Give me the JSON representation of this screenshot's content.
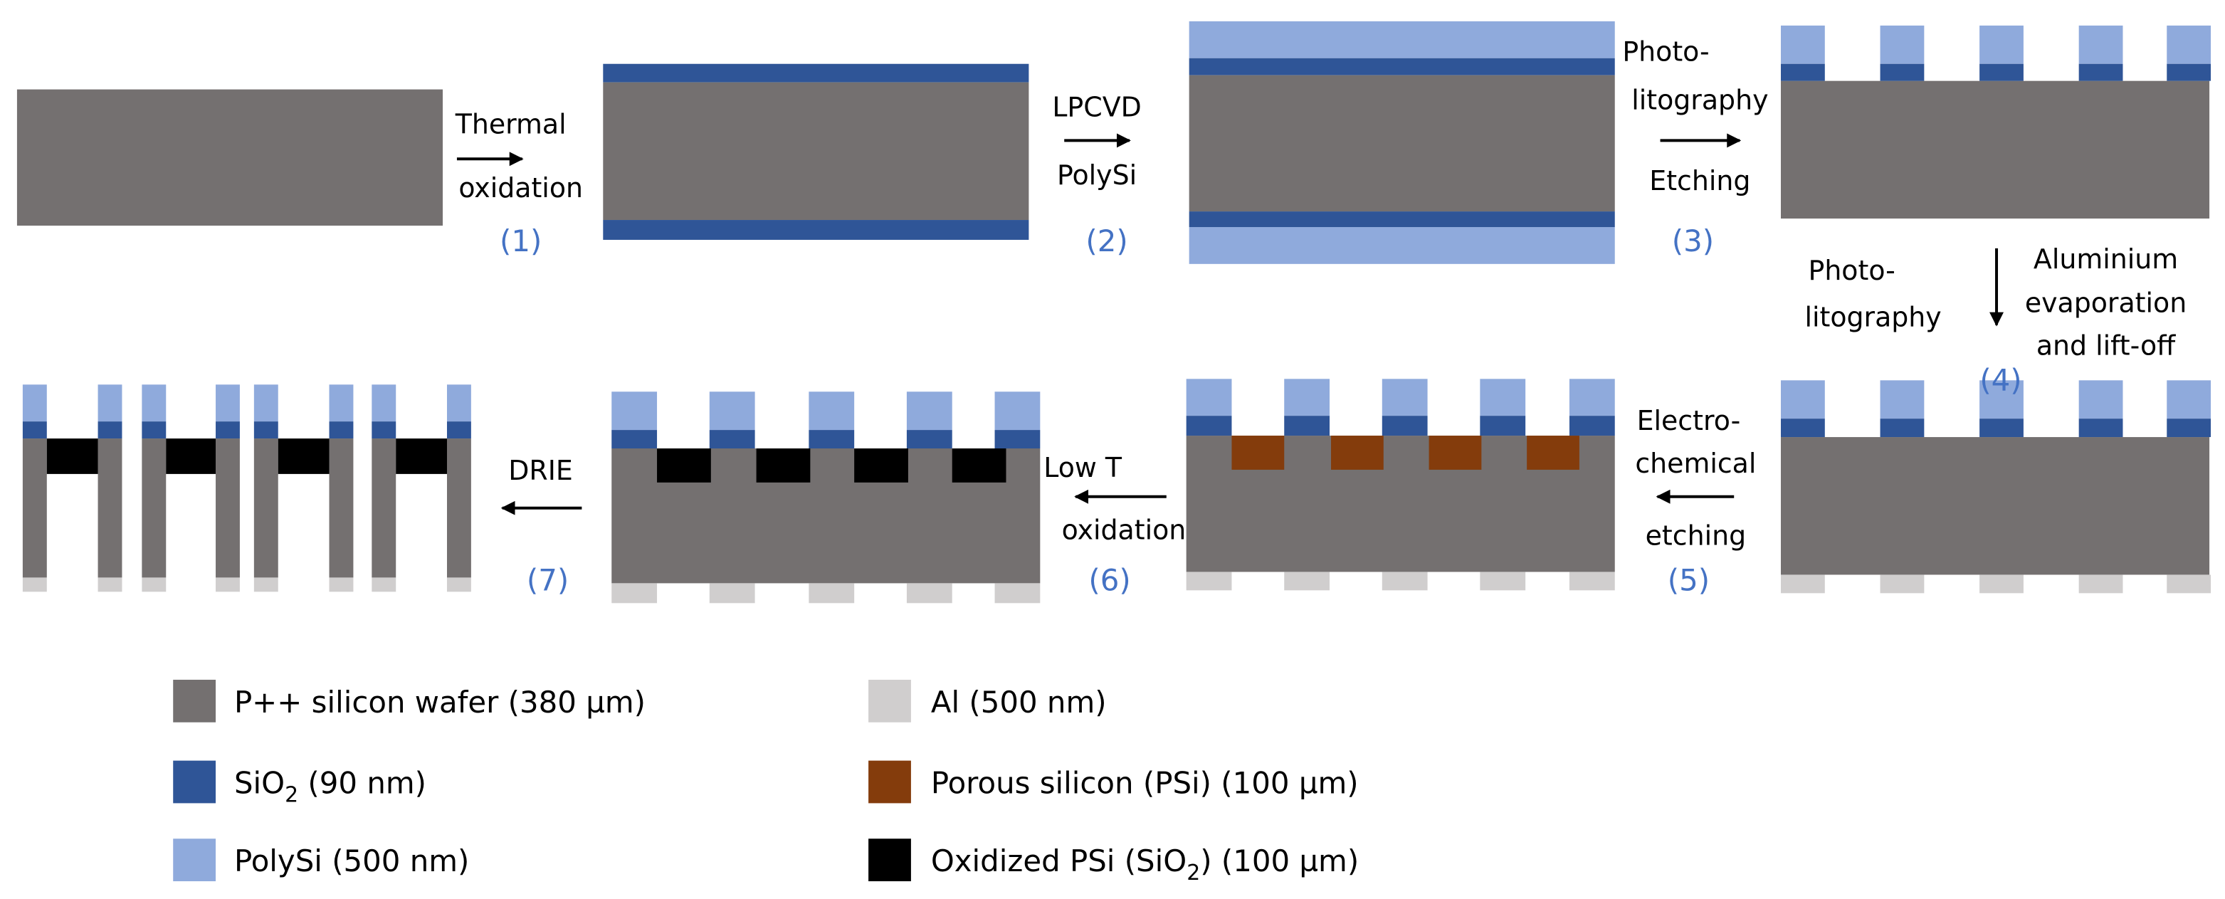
{
  "steps": [
    {
      "number": "(1)",
      "texts": [
        "Thermal",
        "oxidation"
      ]
    },
    {
      "number": "(2)",
      "texts": [
        "LPCVD",
        "PolySi"
      ]
    },
    {
      "number": "(3)",
      "texts": [
        "Photo-",
        "litography",
        "Etching"
      ]
    },
    {
      "number": "(4)",
      "texts": [
        "Photo-",
        "litography",
        "Aluminium",
        "evaporation",
        "and lift-off"
      ]
    },
    {
      "number": "(5)",
      "texts": [
        "Electro-",
        "chemical",
        "etching"
      ]
    },
    {
      "number": "(6)",
      "texts": [
        "Low T",
        "oxidation"
      ]
    },
    {
      "number": "(7)",
      "texts": [
        "DRIE"
      ]
    }
  ],
  "legend": [
    {
      "label": "P++ silicon wafer (380 µm)"
    },
    {
      "label": "SiO",
      "subscript": "2",
      "label_after": " (90 nm)"
    },
    {
      "label": "PolySi (500 nm)"
    },
    {
      "label": "Al (500 nm)"
    },
    {
      "label": "Porous silicon (PSi) (100 µm)"
    },
    {
      "label": "Oxidized PSi (SiO",
      "subscript": "2",
      "label_after": ") (100 µm)"
    }
  ]
}
